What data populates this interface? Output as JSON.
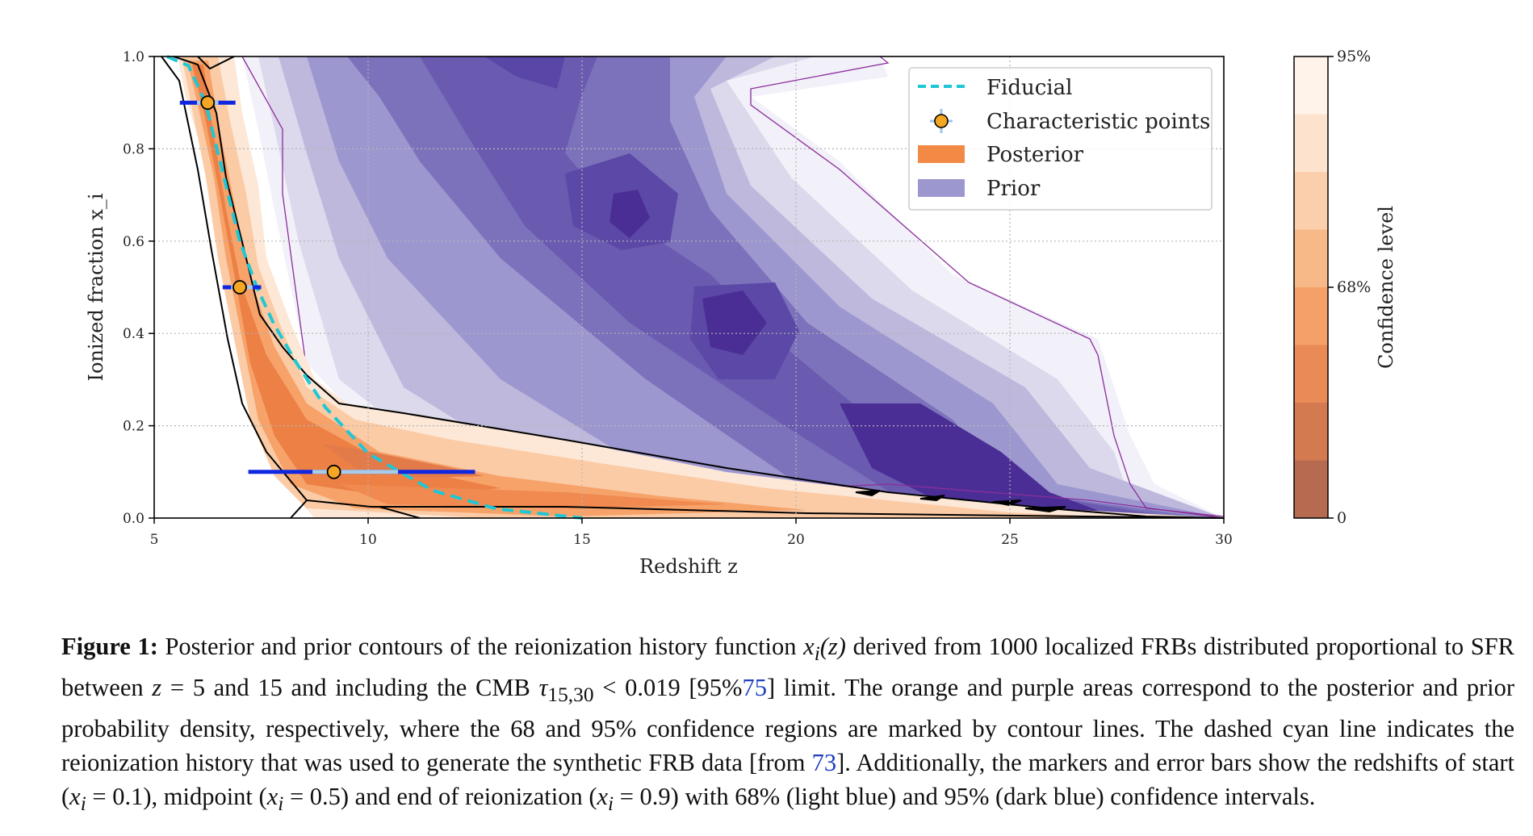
{
  "figure": {
    "axes": {
      "xlabel": "Redshift z",
      "ylabel": "Ionized fraction x_i",
      "xlim": [
        5,
        30
      ],
      "ylim": [
        0.0,
        1.0
      ],
      "xticks": [
        "5",
        "10",
        "15",
        "20",
        "25",
        "30"
      ],
      "yticks": [
        "0.0",
        "0.2",
        "0.4",
        "0.6",
        "0.8",
        "1.0"
      ],
      "grid": "dotted"
    },
    "legend": {
      "placement": "top-right",
      "items": [
        {
          "label": "Fiducial",
          "color": "#1fc7d4",
          "style": "dashed-line"
        },
        {
          "label": "Characteristic points",
          "color": "#f5a623",
          "style": "marker-circle"
        },
        {
          "label": "Posterior",
          "color": "#f28a46",
          "style": "patch"
        },
        {
          "label": "Prior",
          "color": "#9d97cf",
          "style": "patch"
        }
      ]
    },
    "colorbar": {
      "label": "Confidence level",
      "ticks": [
        "95%",
        "68%",
        "0"
      ],
      "colors": [
        "#fff3ea",
        "#fde3cd",
        "#fbcfac",
        "#f8b988",
        "#f5a068",
        "#ea8a56",
        "#d47a50",
        "#b66a4f"
      ]
    }
  },
  "chart_data": {
    "type": "area",
    "xlabel": "Redshift z",
    "ylabel": "Ionized fraction x_i",
    "xlim": [
      5,
      30
    ],
    "ylim": [
      0.0,
      1.0
    ],
    "series": [
      {
        "name": "Fiducial",
        "x": [
          5.3,
          5.8,
          6.2,
          6.6,
          7.0,
          7.4,
          7.8,
          8.3,
          9.0,
          10.0,
          11.5,
          13.0,
          14.5,
          15.0
        ],
        "y": [
          1.0,
          0.98,
          0.9,
          0.75,
          0.6,
          0.5,
          0.42,
          0.34,
          0.24,
          0.14,
          0.06,
          0.02,
          0.005,
          0.0
        ]
      }
    ],
    "characteristic_points": [
      {
        "label": "start",
        "x": 9.2,
        "y": 0.1,
        "ci68": [
          8.7,
          10.7
        ],
        "ci95": [
          7.2,
          12.5
        ]
      },
      {
        "label": "midpoint",
        "x": 7.0,
        "y": 0.5,
        "ci68": [
          6.8,
          7.3
        ],
        "ci95": [
          6.6,
          7.5
        ]
      },
      {
        "label": "end",
        "x": 6.25,
        "y": 0.9,
        "ci68": [
          6.0,
          6.5
        ],
        "ci95": [
          5.6,
          6.9
        ]
      }
    ]
  },
  "caption": {
    "label": "Figure 1:",
    "line1": "Posterior and prior contours of the reionization history function",
    "var": "x",
    "sub": "i",
    "arg": "(z)",
    "line1b": "derived from 1000 localized FRBs distributed proportional to SFR between",
    "z1": "z",
    "range": "= 5 and 15 and including the CMB",
    "tau": "τ",
    "tau_sub": "15,30",
    "limit": "< 0.019 [95%",
    "ref1": "75",
    "rest1": "] limit. The orange and purple areas correspond to the posterior and prior probability density, respectively, where the 68 and 95% confidence regions are marked by contour lines. The dashed cyan line indicates the reionization history that was used to generate the synthetic FRB data [from",
    "ref2": "73",
    "rest2": "]. Additionally, the markers and error bars show the redshifts of start (",
    "start_val": "= 0.1), midpoint (",
    "mid_val": "= 0.5) and end of reionization (",
    "end_val": "= 0.9) with 68% (light blue) and 95% (dark blue) confidence intervals."
  }
}
